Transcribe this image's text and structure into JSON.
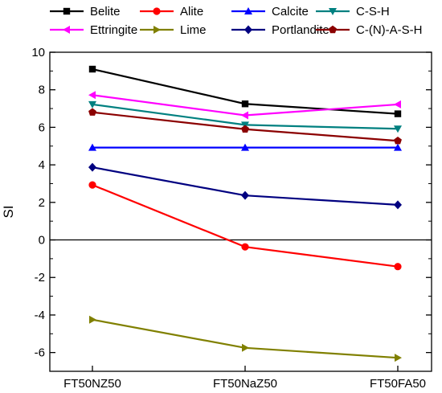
{
  "chart_data": {
    "type": "line",
    "title": "",
    "xlabel": "",
    "ylabel": "SI",
    "categories": [
      "FT50NZ50",
      "FT50NaZ50",
      "FT50FA50"
    ],
    "ylim": [
      -7,
      10
    ],
    "yticks": [
      -6,
      -4,
      -2,
      0,
      2,
      4,
      6,
      8,
      10
    ],
    "yticks_labels": [
      "-6",
      "-4",
      "-2",
      "0",
      "2",
      "4",
      "6",
      "8",
      "10"
    ],
    "reference_line": 0,
    "grid": false,
    "legend_position": "top",
    "series": [
      {
        "name": "Belite",
        "values": [
          9.1,
          7.25,
          6.72
        ],
        "color": "#000000",
        "marker": "square"
      },
      {
        "name": "Alite",
        "values": [
          2.93,
          -0.37,
          -1.42
        ],
        "color": "#ff0000",
        "marker": "circle"
      },
      {
        "name": "Calcite",
        "values": [
          4.92,
          4.92,
          4.92
        ],
        "color": "#0000ff",
        "marker": "triangle-up"
      },
      {
        "name": "C-S-H",
        "values": [
          7.22,
          6.13,
          5.92
        ],
        "color": "#008080",
        "marker": "triangle-down"
      },
      {
        "name": "Ettringite",
        "values": [
          7.72,
          6.64,
          7.22
        ],
        "color": "#ff00ff",
        "marker": "triangle-left"
      },
      {
        "name": "Lime",
        "values": [
          -4.25,
          -5.75,
          -6.28
        ],
        "color": "#808000",
        "marker": "triangle-right"
      },
      {
        "name": "Portlandite",
        "values": [
          3.87,
          2.37,
          1.87
        ],
        "color": "#000080",
        "marker": "diamond"
      },
      {
        "name": "C-(N)-A-S-H",
        "values": [
          6.8,
          5.9,
          5.28
        ],
        "color": "#8b0000",
        "marker": "pentagon"
      }
    ]
  }
}
